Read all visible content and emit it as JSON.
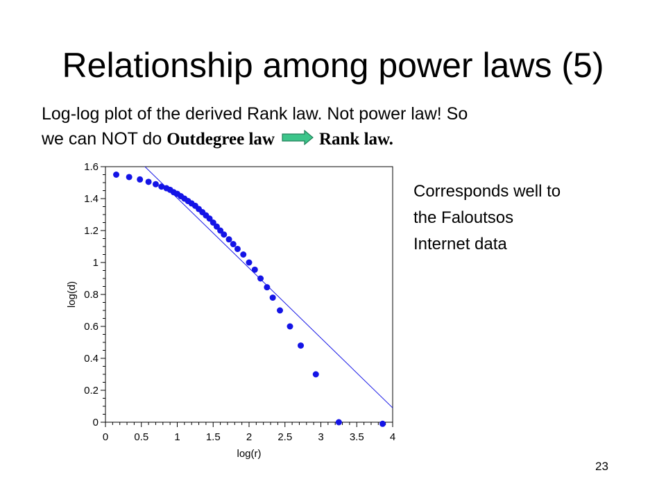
{
  "slide": {
    "title": "Relationship among power laws (5)",
    "line1": "Log-log plot of the derived Rank law. Not power law! So",
    "line2_prefix": "we can NOT do ",
    "line2_from": "Outdegree law",
    "line2_to": "Rank law.",
    "arrow_icon": "right-arrow-icon",
    "arrow_color": "#3cc58a",
    "side_note": [
      "Corresponds well to",
      "the Faloutsos",
      "Internet data"
    ],
    "page_number": "23"
  },
  "chart_data": {
    "type": "scatter",
    "title": "",
    "xlabel": "log(r)",
    "ylabel": "log(d)",
    "xlim": [
      0,
      4
    ],
    "ylim": [
      0,
      1.6
    ],
    "xticks": [
      "0",
      "0.5",
      "1",
      "1.5",
      "2",
      "2.5",
      "3",
      "3.5",
      "4"
    ],
    "yticks": [
      "0",
      "0.2",
      "0.4",
      "0.6",
      "0.8",
      "1",
      "1.2",
      "1.4",
      "1.6"
    ],
    "point_color": "#1414e6",
    "line_color": "#1414e6",
    "grid": false,
    "points": {
      "x": [
        0.15,
        0.33,
        0.48,
        0.6,
        0.7,
        0.78,
        0.85,
        0.9,
        0.95,
        1.0,
        1.05,
        1.1,
        1.15,
        1.2,
        1.25,
        1.3,
        1.35,
        1.4,
        1.45,
        1.5,
        1.55,
        1.6,
        1.65,
        1.72,
        1.78,
        1.84,
        1.92,
        2.0,
        2.08,
        2.16,
        2.25,
        2.33,
        2.43,
        2.57,
        2.72,
        2.93,
        3.25,
        3.86
      ],
      "y": [
        1.55,
        1.535,
        1.52,
        1.505,
        1.49,
        1.475,
        1.465,
        1.455,
        1.44,
        1.43,
        1.415,
        1.4,
        1.385,
        1.37,
        1.355,
        1.335,
        1.315,
        1.295,
        1.275,
        1.25,
        1.225,
        1.2,
        1.175,
        1.145,
        1.115,
        1.085,
        1.05,
        1.0,
        0.955,
        0.9,
        0.845,
        0.78,
        0.7,
        0.6,
        0.48,
        0.3,
        0.0,
        -0.01
      ]
    },
    "fit_line": {
      "x": [
        0.55,
        4.0
      ],
      "y": [
        1.6,
        0.09
      ]
    }
  }
}
